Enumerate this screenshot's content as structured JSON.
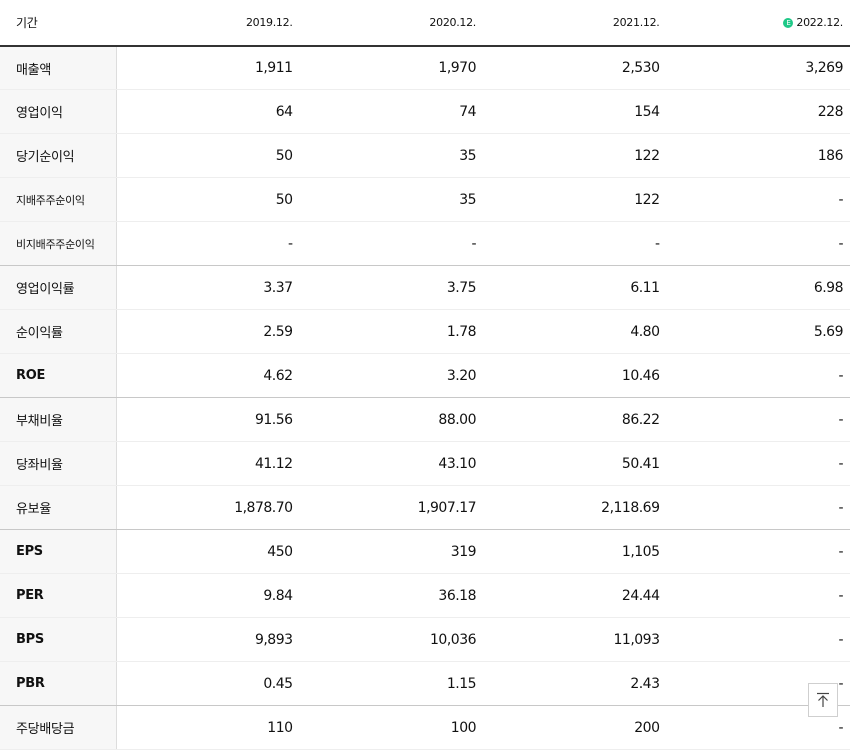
{
  "table": {
    "period_label": "기간",
    "periods": [
      "2019.12.",
      "2020.12.",
      "2021.12.",
      "2022.12."
    ],
    "estimate_badge": "E",
    "rows": [
      {
        "label": "매출액",
        "values": [
          "1,911",
          "1,970",
          "2,530",
          "3,269"
        ]
      },
      {
        "label": "영업이익",
        "values": [
          "64",
          "74",
          "154",
          "228"
        ]
      },
      {
        "label": "당기순이익",
        "values": [
          "50",
          "35",
          "122",
          "186"
        ]
      },
      {
        "label": "지배주주순이익",
        "values": [
          "50",
          "35",
          "122",
          "-"
        ]
      },
      {
        "label": "비지배주주순이익",
        "values": [
          "-",
          "-",
          "-",
          "-"
        ]
      },
      {
        "label": "영업이익률",
        "values": [
          "3.37",
          "3.75",
          "6.11",
          "6.98"
        ]
      },
      {
        "label": "순이익률",
        "values": [
          "2.59",
          "1.78",
          "4.80",
          "5.69"
        ]
      },
      {
        "label": "ROE",
        "values": [
          "4.62",
          "3.20",
          "10.46",
          "-"
        ]
      },
      {
        "label": "부채비율",
        "values": [
          "91.56",
          "88.00",
          "86.22",
          "-"
        ]
      },
      {
        "label": "당좌비율",
        "values": [
          "41.12",
          "43.10",
          "50.41",
          "-"
        ]
      },
      {
        "label": "유보율",
        "values": [
          "1,878.70",
          "1,907.17",
          "2,118.69",
          "-"
        ]
      },
      {
        "label": "EPS",
        "values": [
          "450",
          "319",
          "1,105",
          "-"
        ]
      },
      {
        "label": "PER",
        "values": [
          "9.84",
          "36.18",
          "24.44",
          "-"
        ]
      },
      {
        "label": "BPS",
        "values": [
          "9,893",
          "10,036",
          "11,093",
          "-"
        ]
      },
      {
        "label": "PBR",
        "values": [
          "0.45",
          "1.15",
          "2.43",
          "-"
        ]
      },
      {
        "label": "주당배당금",
        "values": [
          "110",
          "100",
          "200",
          "-"
        ]
      }
    ]
  },
  "scroll_top_icon": "arrow-up-to-top-icon"
}
